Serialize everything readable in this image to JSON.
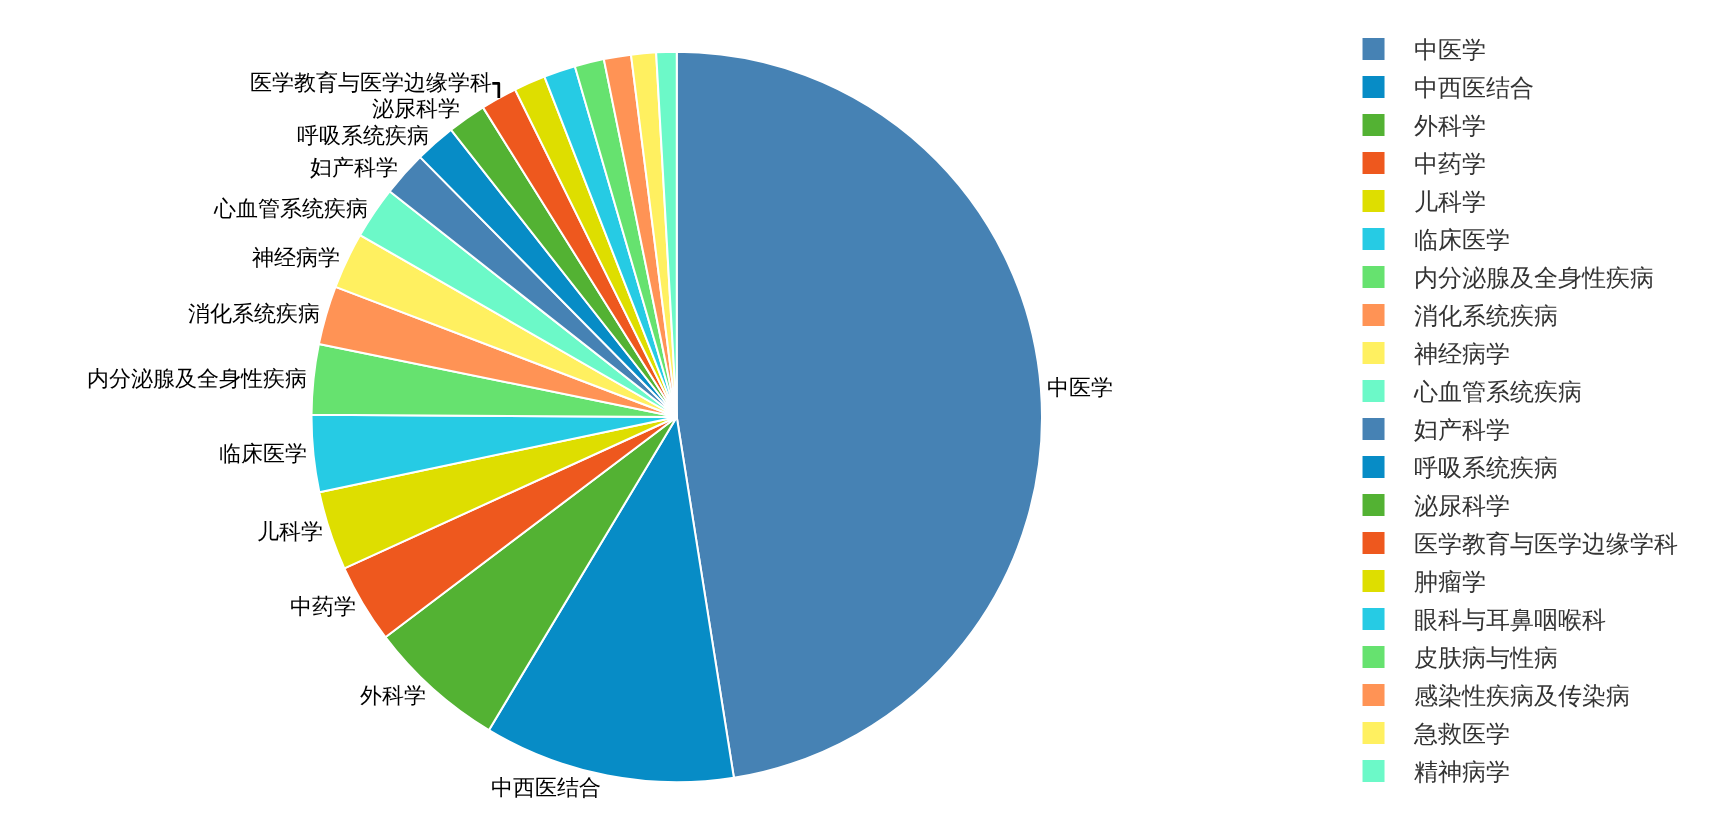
{
  "chart_data": {
    "type": "pie",
    "categories": [
      "中医学",
      "中西医结合",
      "外科学",
      "中药学",
      "儿科学",
      "临床医学",
      "内分泌腺及全身性疾病",
      "消化系统疾病",
      "神经病学",
      "心血管系统疾病",
      "妇产科学",
      "呼吸系统疾病",
      "泌尿科学",
      "医学教育与医学边缘学科",
      "肿瘤学",
      "眼科与耳鼻咽喉科",
      "皮肤病与性病",
      "感染性疾病及传染病",
      "急救医学",
      "精神病学"
    ],
    "values": [
      47.5,
      11.1,
      6.1,
      3.5,
      3.5,
      3.4,
      3.1,
      2.6,
      2.5,
      2.3,
      2.0,
      1.8,
      1.7,
      1.6,
      1.4,
      1.4,
      1.3,
      1.2,
      1.1,
      0.9
    ],
    "colors": [
      "#4682b4",
      "#078cc6",
      "#53b233",
      "#ee581e",
      "#dede00",
      "#26cbe4",
      "#66e26f",
      "#ff9355",
      "#fff060",
      "#6cf9c8",
      "#4682b4",
      "#078cc6",
      "#53b233",
      "#ee581e",
      "#dede00",
      "#26cbe4",
      "#66e26f",
      "#ff9355",
      "#fff060",
      "#6cf9c8"
    ],
    "legend": "right"
  }
}
